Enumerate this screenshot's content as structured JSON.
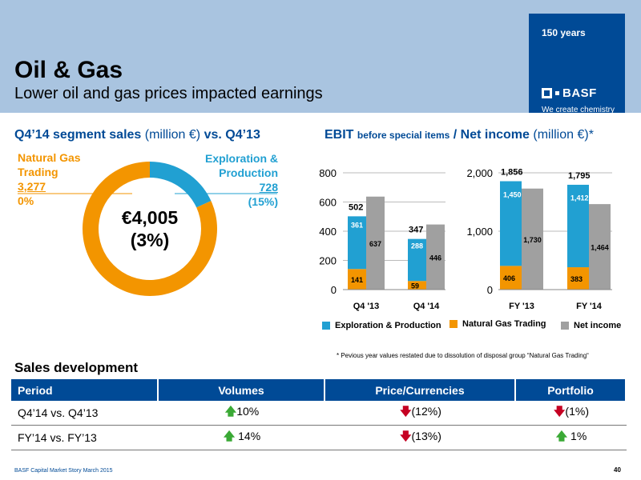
{
  "header": {
    "title": "Oil & Gas",
    "subtitle": "Lower oil and gas prices impacted earnings",
    "years": "150 years",
    "brand": "BASF",
    "tagline": "We create chemistry"
  },
  "donut": {
    "heading_bold": "Q4’14 segment sales",
    "heading_unit": "(million €)",
    "heading_vs": "vs. Q4’13",
    "center_value": "€4,005",
    "center_change": "(3%)",
    "ngt_name_1": "Natural Gas",
    "ngt_name_2": "Trading",
    "ngt_value": "3,277",
    "ngt_change": "0%",
    "exp_name_1": "Exploration &",
    "exp_name_2": "Production",
    "exp_value": "728",
    "exp_change": "(15%)"
  },
  "ebit": {
    "heading_bold1": "EBIT",
    "heading_small": "before special items",
    "heading_slash": "/",
    "heading_bold2": "Net income",
    "heading_unit": "(million €)*"
  },
  "chart_data": [
    {
      "type": "pie",
      "style": "donut",
      "categories": [
        "Exploration & Production",
        "Natural Gas Trading"
      ],
      "values": [
        728,
        3277
      ],
      "total": 4005,
      "colors": [
        "#21a0d2",
        "#f39500"
      ]
    },
    {
      "type": "bar",
      "stacked_with_comparison": true,
      "categories": [
        "Q4 '13",
        "Q4 '14"
      ],
      "ylim": [
        0,
        800
      ],
      "yticks": [
        0,
        200,
        400,
        600,
        800
      ],
      "ytick_labels": [
        "0",
        "200",
        "400",
        "600",
        "800"
      ],
      "ebit_totals": [
        502,
        347
      ],
      "ebit_total_labels": [
        "502",
        "347"
      ],
      "series": [
        {
          "name": "Natural Gas Trading",
          "values": [
            141,
            59
          ],
          "labels": [
            "141",
            "59"
          ],
          "color": "#f39500"
        },
        {
          "name": "Exploration & Production",
          "values": [
            361,
            288
          ],
          "labels": [
            "361",
            "288"
          ],
          "color": "#21a0d2"
        },
        {
          "name": "Net income",
          "values": [
            637,
            446
          ],
          "labels": [
            "637",
            "446"
          ],
          "color": "#a0a0a0"
        }
      ]
    },
    {
      "type": "bar",
      "stacked_with_comparison": true,
      "categories": [
        "FY '13",
        "FY '14"
      ],
      "ylim": [
        0,
        2000
      ],
      "yticks": [
        0,
        1000,
        2000
      ],
      "ytick_labels": [
        "0",
        "1,000",
        "2,000"
      ],
      "ebit_totals": [
        1856,
        1795
      ],
      "ebit_total_labels": [
        "1,856",
        "1,795"
      ],
      "series": [
        {
          "name": "Natural Gas Trading",
          "values": [
            406,
            383
          ],
          "labels": [
            "406",
            "383"
          ],
          "color": "#f39500"
        },
        {
          "name": "Exploration & Production",
          "values": [
            1450,
            1412
          ],
          "labels": [
            "1,450",
            "1,412"
          ],
          "color": "#21a0d2"
        },
        {
          "name": "Net income",
          "values": [
            1730,
            1464
          ],
          "labels": [
            "1,730",
            "1,464"
          ],
          "color": "#a0a0a0"
        }
      ]
    }
  ],
  "legend": [
    {
      "label": "Exploration & Production",
      "color": "#21a0d2"
    },
    {
      "label": "Natural Gas Trading",
      "color": "#f39500"
    },
    {
      "label": "Net income",
      "color": "#a0a0a0"
    }
  ],
  "footnote": "*   Pevious year values restated due to dissolution of disposal group “Natural Gas Trading“",
  "sales": {
    "title": "Sales development",
    "headers": [
      "Period",
      "Volumes",
      "Price/Currencies",
      "Portfolio"
    ],
    "rows": [
      {
        "period": "Q4’14 vs. Q4’13",
        "volumes": "10%",
        "volumes_dir": "up",
        "price": "(12%)",
        "price_dir": "down",
        "portfolio": "(1%)",
        "portfolio_dir": "down"
      },
      {
        "period": "FY’14 vs. FY’13",
        "volumes": " 14%",
        "volumes_dir": "up",
        "price": "(13%)",
        "price_dir": "down",
        "portfolio": " 1%",
        "portfolio_dir": "up"
      }
    ]
  },
  "footer": "BASF Capital Market Story March 2015",
  "page_number": "40"
}
